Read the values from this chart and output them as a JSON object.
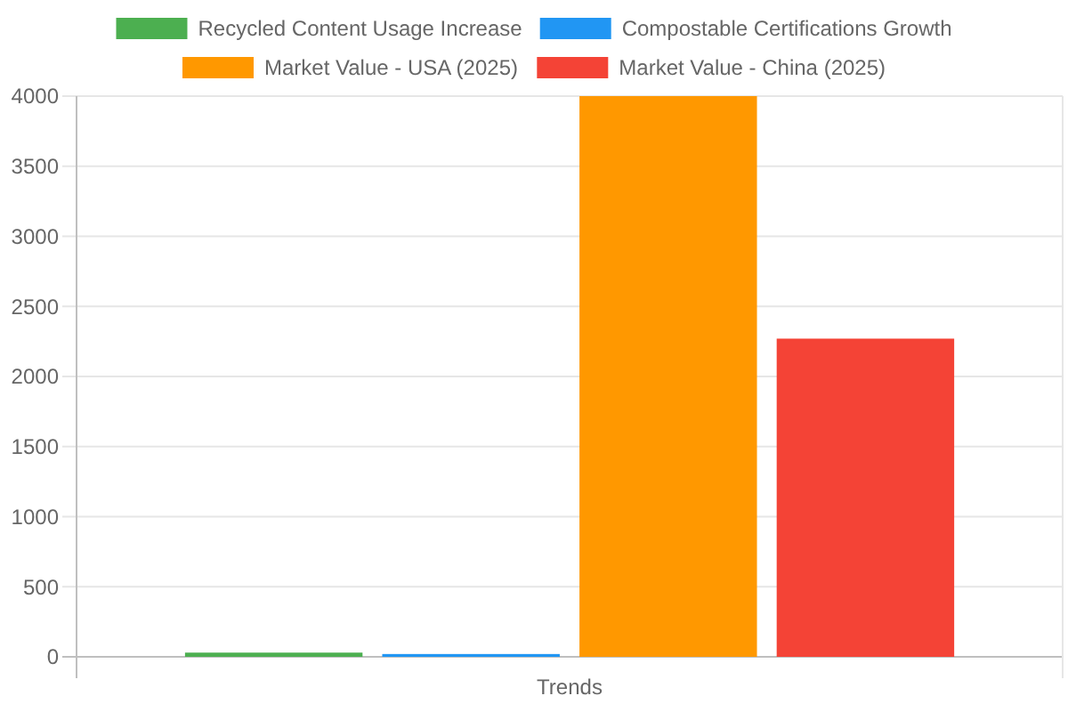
{
  "chart_data": {
    "type": "bar",
    "categories": [
      "Trends"
    ],
    "series": [
      {
        "name": "Recycled Content Usage Increase",
        "color": "#4caf50",
        "values": [
          30
        ]
      },
      {
        "name": "Compostable Certifications Growth",
        "color": "#2196f3",
        "values": [
          20
        ]
      },
      {
        "name": "Market Value - USA (2025)",
        "color": "#ff9800",
        "values": [
          4000
        ]
      },
      {
        "name": "Market Value - China (2025)",
        "color": "#f44336",
        "values": [
          2270
        ]
      }
    ],
    "ylim": [
      0,
      4000
    ],
    "yticks": [
      0,
      500,
      1000,
      1500,
      2000,
      2500,
      3000,
      3500,
      4000
    ],
    "grid": true,
    "legend": "top"
  }
}
